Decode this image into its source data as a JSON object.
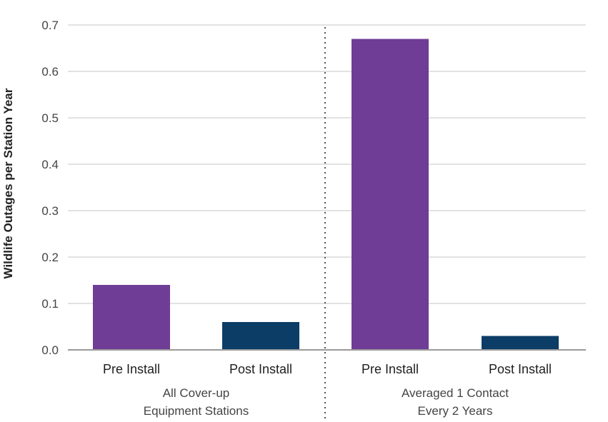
{
  "chart_data": {
    "type": "bar",
    "title": "",
    "xlabel": "",
    "ylabel": "Wildlife Outages per Station Year",
    "ylim": [
      0,
      0.7
    ],
    "yticks": [
      "0.0",
      "0.1",
      "0.2",
      "0.3",
      "0.4",
      "0.5",
      "0.6",
      "0.7"
    ],
    "grid": true,
    "legend": "none",
    "groups": [
      {
        "label_lines": [
          "All Cover-up",
          "Equipment Stations"
        ],
        "categories": [
          "Pre Install",
          "Post Install"
        ],
        "values": [
          0.14,
          0.06
        ]
      },
      {
        "label_lines": [
          "Averaged 1 Contact",
          "Every 2 Years"
        ],
        "categories": [
          "Pre Install",
          "Post Install"
        ],
        "values": [
          0.67,
          0.03
        ]
      }
    ],
    "colors": {
      "Pre Install": "#6f3d96",
      "Post Install": "#0b3d66",
      "grid": "#d9d9d9",
      "axis": "#9a9a9a",
      "separator": "#555555"
    }
  }
}
